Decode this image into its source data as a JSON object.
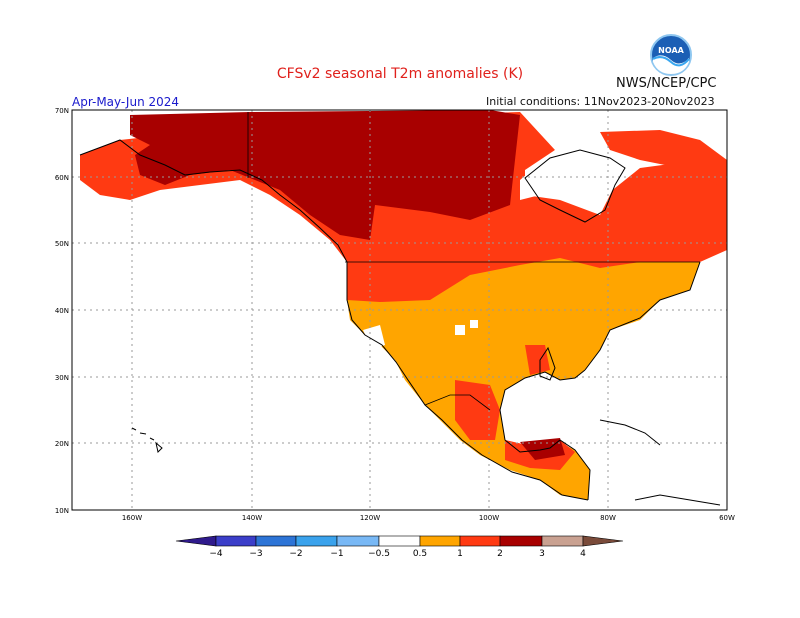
{
  "header": {
    "title": "CFSv2 seasonal T2m anomalies (K)",
    "season": "Apr-May-Jun 2024",
    "initial_conditions": "Initial conditions: 11Nov2023-20Nov2023",
    "organization": "NWS/NCEP/CPC",
    "logo_text": "NOAA"
  },
  "map": {
    "lat_labels": [
      "70N",
      "60N",
      "50N",
      "40N",
      "30N",
      "20N",
      "10N"
    ],
    "lon_labels": [
      "160W",
      "140W",
      "120W",
      "100W",
      "80W",
      "60W"
    ],
    "colors": {
      "grid": "#9a9a9a",
      "outline": "#000000",
      "pale": "#ffffff",
      "c_05_1": "#ffa500",
      "c_1_2": "#ff3a12",
      "c_2_3": "#a80000",
      "c_3_4": "#c9a191"
    }
  },
  "legend": {
    "tick_labels": [
      "−4",
      "−3",
      "−2",
      "−1",
      "−0.5",
      "0.5",
      "1",
      "2",
      "3",
      "4"
    ],
    "bins": [
      {
        "range": "< -4",
        "color": "#2f1a8c"
      },
      {
        "range": "-4 to -3",
        "color": "#3b3ec9"
      },
      {
        "range": "-3 to -2",
        "color": "#2d74d6"
      },
      {
        "range": "-2 to -1",
        "color": "#3aa2ec"
      },
      {
        "range": "-1 to -0.5",
        "color": "#78b8f5"
      },
      {
        "range": "-0.5 to 0.5",
        "color": "#ffffff"
      },
      {
        "range": "0.5 to 1",
        "color": "#ffa500"
      },
      {
        "range": "1 to 2",
        "color": "#ff3a12"
      },
      {
        "range": "2 to 3",
        "color": "#a80000"
      },
      {
        "range": "3 to 4",
        "color": "#c9a191"
      },
      {
        "range": "> 4",
        "color": "#7a4b3a"
      }
    ]
  }
}
